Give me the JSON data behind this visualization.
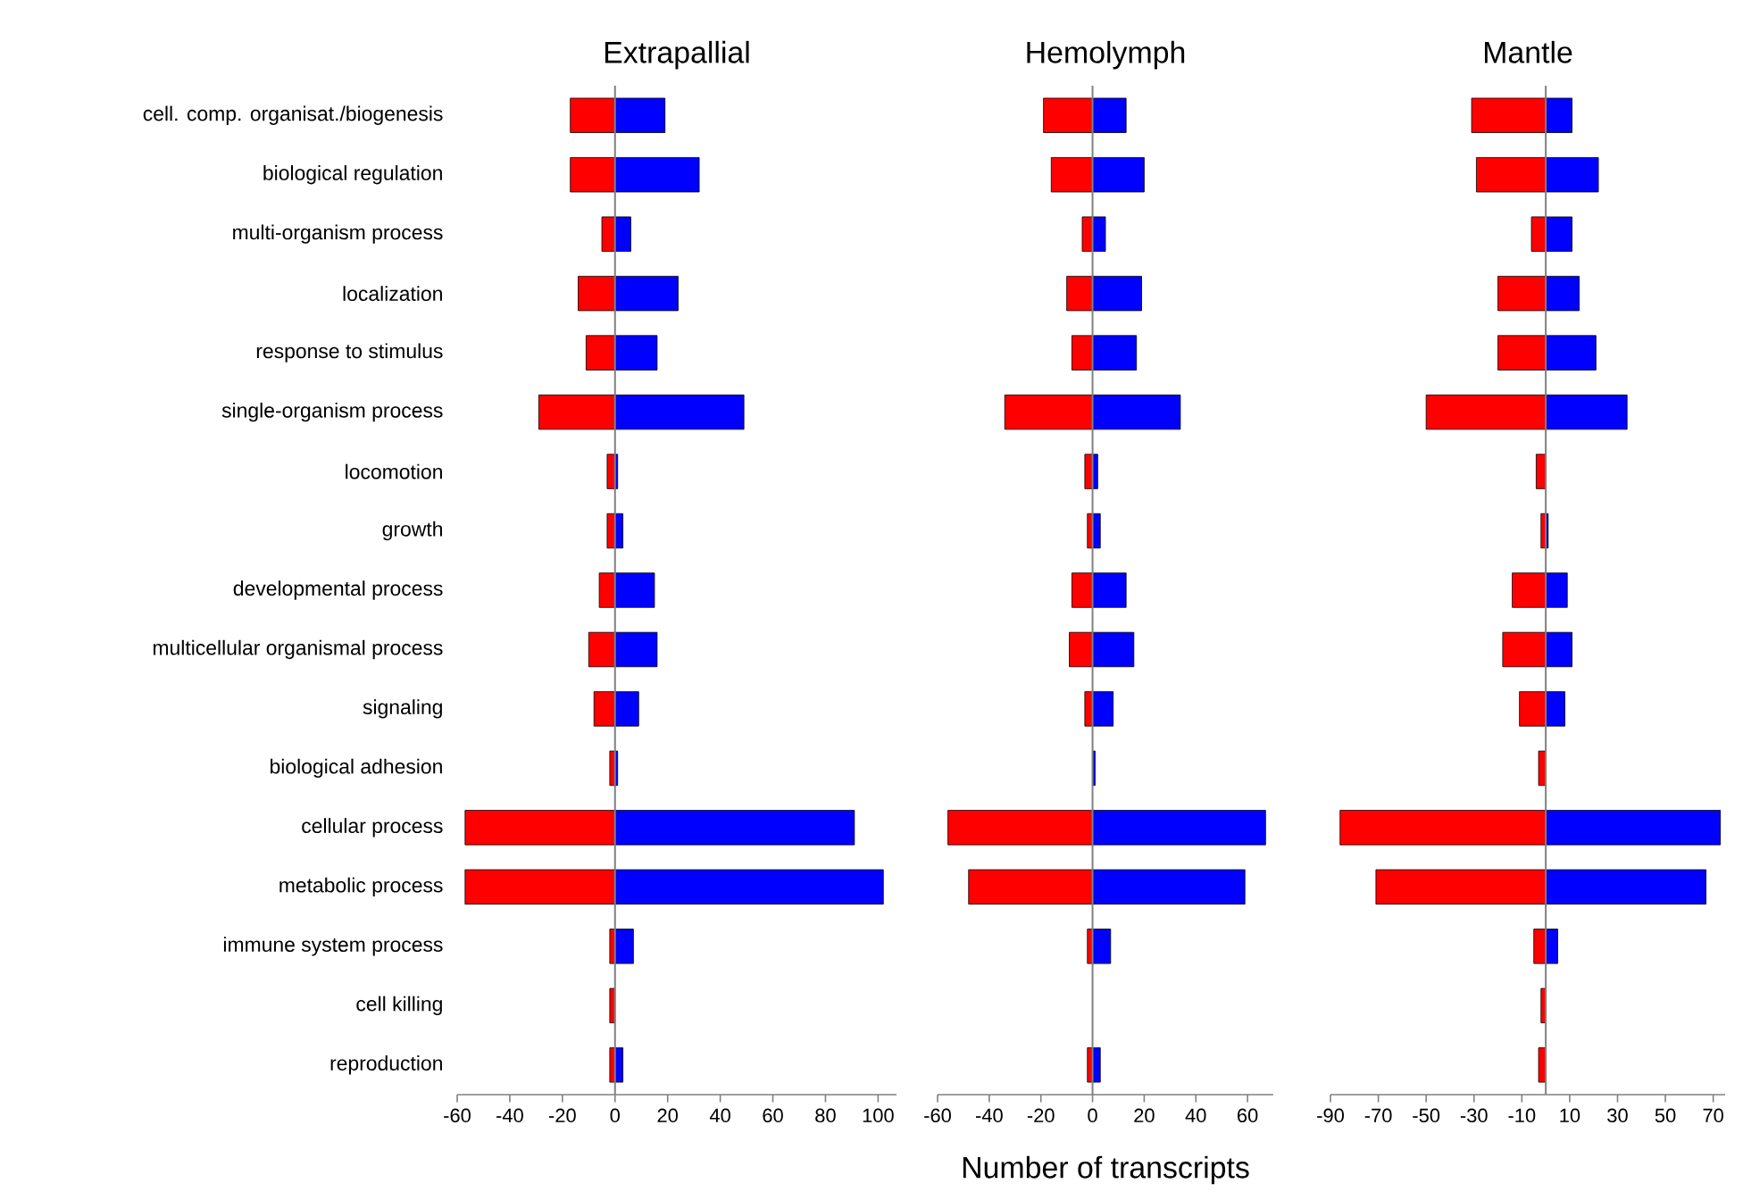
{
  "chart_data": [
    {
      "type": "bar",
      "orientation": "horizontal",
      "stacked": true,
      "title": "Extrapallial",
      "categories": [
        "cell. comp. organisat./biogenesis",
        "biological regulation",
        "multi-organism process",
        "localization",
        "response to stimulus",
        "single-organism process",
        "locomotion",
        "growth",
        "developmental process",
        "multicellular organismal process",
        "signaling",
        "biological adhesion",
        "cellular process",
        "metabolic process",
        "immune system process",
        "cell killing",
        "reproduction"
      ],
      "series": [
        {
          "color": "#ff0000",
          "values": [
            -17,
            -17,
            -5,
            -14,
            -11,
            -29,
            -3,
            -3,
            -6,
            -10,
            -8,
            -2,
            -57,
            -57,
            -2,
            -2,
            -2
          ]
        },
        {
          "color": "#0000ff",
          "values": [
            19,
            32,
            6,
            24,
            16,
            49,
            1,
            3,
            15,
            16,
            9,
            1,
            91,
            102,
            7,
            null,
            3
          ]
        }
      ],
      "xlim": [
        -60,
        107
      ],
      "xticks": [
        -60,
        -40,
        -20,
        0,
        20,
        40,
        60,
        80,
        100
      ]
    },
    {
      "type": "bar",
      "orientation": "horizontal",
      "stacked": true,
      "title": "Hemolymph",
      "xlabel": "Number of transcripts",
      "tick_labels": "x",
      "categories": [
        null,
        null,
        null,
        null,
        null,
        null,
        null,
        null,
        null,
        null,
        null,
        null,
        null,
        null,
        null,
        null,
        null
      ],
      "series": [
        {
          "color": "#ff0000",
          "values": [
            -19,
            -16,
            -4,
            -10,
            -8,
            -34,
            -3,
            -2,
            -8,
            -9,
            -3,
            null,
            -56,
            -48,
            -2,
            null,
            -2
          ]
        },
        {
          "color": "#0000ff",
          "values": [
            13,
            20,
            5,
            19,
            17,
            34,
            2,
            3,
            13,
            16,
            8,
            1,
            67,
            59,
            7,
            null,
            3
          ]
        }
      ],
      "xlim": [
        -60,
        70
      ],
      "xticks": [
        -60,
        -40,
        -20,
        0,
        20,
        40,
        60
      ]
    },
    {
      "type": "bar",
      "orientation": "horizontal",
      "stacked": true,
      "title": "Mantle",
      "tick_labels": "x",
      "categories": [
        null,
        null,
        null,
        null,
        null,
        null,
        null,
        null,
        null,
        null,
        null,
        null,
        null,
        null,
        null,
        null,
        null
      ],
      "series": [
        {
          "color": "#ff0000",
          "values": [
            -31,
            -29,
            -6,
            -20,
            -20,
            -50,
            -4,
            -2,
            -14,
            -18,
            -11,
            -3,
            -86,
            -71,
            -5,
            -2,
            -3
          ]
        },
        {
          "color": "#0000ff",
          "values": [
            11,
            22,
            11,
            14,
            21,
            34,
            null,
            1,
            9,
            11,
            8,
            null,
            73,
            67,
            5,
            null,
            null
          ]
        }
      ],
      "xlim": [
        -90,
        75
      ],
      "xticks": [
        -90,
        -70,
        -50,
        -30,
        -10,
        10,
        30,
        50,
        70
      ]
    }
  ]
}
